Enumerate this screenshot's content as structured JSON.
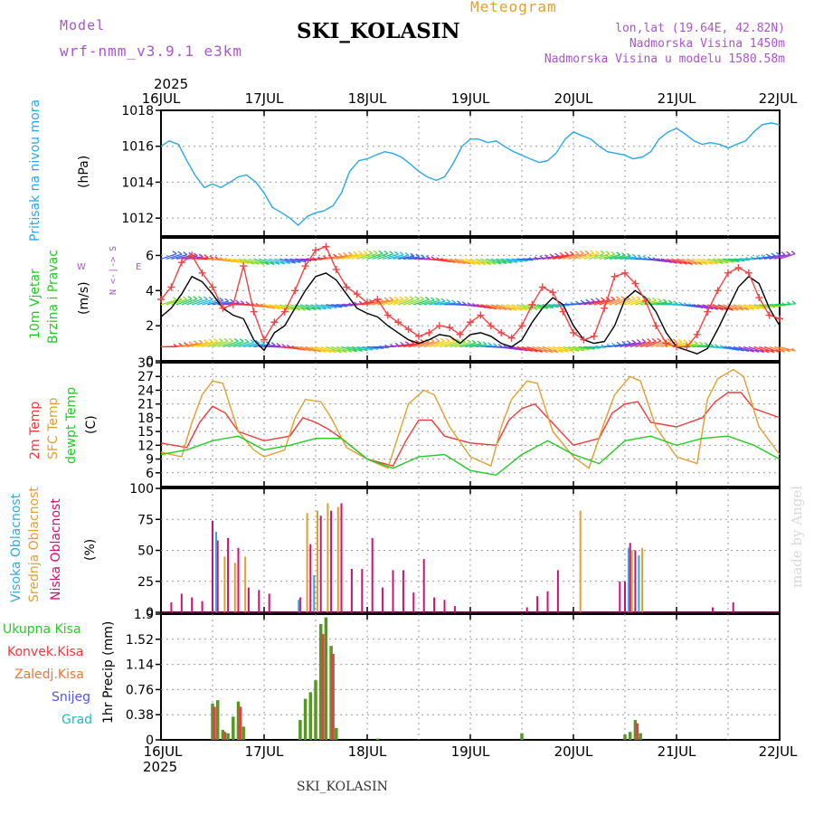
{
  "header": {
    "model_label": "Model",
    "model_name": "wrf-nmm_v3.9.1 e3km",
    "title": "SKI_KOLASIN",
    "meteogram_label": "Meteogram",
    "coords": "lon,lat (19.64E, 42.82N)",
    "elevation": "Nadmorska Visina 1450m",
    "model_elevation": "Nadmorska Visina u modelu 1580.58m",
    "footer_title": "SKI_KOLASIN",
    "watermark": "made by Angel"
  },
  "time_axis": {
    "year": "2025",
    "labels": [
      "16JUL",
      "17JUL",
      "18JUL",
      "19JUL",
      "20JUL",
      "21JUL",
      "22JUL"
    ]
  },
  "panel_labels": {
    "pressure": {
      "title": "Pritisak na nivou mora",
      "unit": "(hPa)"
    },
    "wind": {
      "title1": "10m Vjetar",
      "title2": "Brzina i Pravac",
      "unit": "(m/s)",
      "compass_ns": "N <-|-> S",
      "compass_w": "W",
      "compass_e": "E"
    },
    "temp": {
      "t2m": "2m Temp",
      "sfc": "SFC Temp",
      "dew": "dewpt Temp",
      "unit": "(C)"
    },
    "cloud": {
      "high": "Visoka Oblacnost",
      "mid": "Srednja Oblacnost",
      "low": "Niska Oblacnost",
      "unit": "(%)"
    },
    "precip": {
      "total": "Ukupna Kisa",
      "conv": "Konvek.Kisa",
      "frz": "Zaledj.Kisa",
      "snow": "Snijeg",
      "hail": "Grad",
      "unit": "1hr Precip (mm)"
    }
  },
  "colors": {
    "pressure": "#2aa7e6",
    "temp2m": "#ee3a3a",
    "sfc": "#e0a030",
    "dew": "#22cc22",
    "wind_black": "#000000",
    "wind_red": "#ee4444",
    "high_cloud": "#33aadd",
    "mid_cloud": "#e0a030",
    "low_cloud": "#cc1177",
    "precip_total": "#559922",
    "precip_conv": "#dd4444",
    "model_purple": "#aa55cc",
    "orange_title": "#e0a030"
  },
  "chart_data": [
    {
      "type": "line",
      "title": "Pritisak na nivou mora",
      "ylabel": "(hPa)",
      "x_unit": "days since 16JUL 00UTC",
      "ylim": [
        1011,
        1018
      ],
      "yticks": [
        "1012",
        "1014",
        "1016",
        "1018"
      ],
      "series": [
        {
          "name": "Pritisak",
          "x": [
            0,
            0.08,
            0.17,
            0.25,
            0.33,
            0.42,
            0.5,
            0.58,
            0.67,
            0.75,
            0.83,
            0.92,
            1.0,
            1.08,
            1.17,
            1.25,
            1.33,
            1.42,
            1.5,
            1.58,
            1.67,
            1.75,
            1.83,
            1.92,
            2.0,
            2.08,
            2.17,
            2.25,
            2.33,
            2.42,
            2.5,
            2.58,
            2.67,
            2.75,
            2.83,
            2.92,
            3.0,
            3.08,
            3.17,
            3.25,
            3.33,
            3.42,
            3.5,
            3.58,
            3.67,
            3.75,
            3.83,
            3.92,
            4.0,
            4.08,
            4.17,
            4.25,
            4.33,
            4.42,
            4.5,
            4.58,
            4.67,
            4.75,
            4.83,
            4.92,
            5.0,
            5.08,
            5.17,
            5.25,
            5.33,
            5.42,
            5.5,
            5.58,
            5.67,
            5.75,
            5.83,
            5.92,
            6.0
          ],
          "values": [
            1016.0,
            1016.3,
            1016.1,
            1015.2,
            1014.4,
            1013.7,
            1013.9,
            1013.7,
            1014.0,
            1014.3,
            1014.4,
            1014.0,
            1013.4,
            1012.6,
            1012.3,
            1012.0,
            1011.6,
            1012.1,
            1012.3,
            1012.4,
            1012.7,
            1013.4,
            1014.6,
            1015.2,
            1015.3,
            1015.5,
            1015.7,
            1015.6,
            1015.4,
            1015.0,
            1014.6,
            1014.3,
            1014.1,
            1014.3,
            1015.0,
            1016.0,
            1016.4,
            1016.4,
            1016.2,
            1016.3,
            1016.0,
            1015.7,
            1015.5,
            1015.3,
            1015.1,
            1015.2,
            1015.6,
            1016.4,
            1016.8,
            1016.6,
            1016.4,
            1016.0,
            1015.7,
            1015.6,
            1015.5,
            1015.3,
            1015.4,
            1015.7,
            1016.4,
            1016.8,
            1017.0,
            1016.7,
            1016.3,
            1016.1,
            1016.2,
            1016.1,
            1015.9,
            1016.1,
            1016.3,
            1016.8,
            1017.2,
            1017.3,
            1017.2
          ]
        }
      ]
    },
    {
      "type": "line",
      "title": "10m Vjetar Brzina i Pravac",
      "ylabel": "(m/s)",
      "ylim": [
        0,
        7
      ],
      "yticks": [
        "0",
        "2",
        "4",
        "6"
      ],
      "series": [
        {
          "name": "brzina",
          "x": [
            0,
            0.1,
            0.2,
            0.3,
            0.4,
            0.5,
            0.6,
            0.7,
            0.8,
            0.9,
            1.0,
            1.1,
            1.2,
            1.3,
            1.4,
            1.5,
            1.6,
            1.7,
            1.8,
            1.9,
            2.0,
            2.1,
            2.2,
            2.3,
            2.4,
            2.5,
            2.6,
            2.7,
            2.8,
            2.9,
            3.0,
            3.1,
            3.2,
            3.3,
            3.4,
            3.5,
            3.6,
            3.7,
            3.8,
            3.9,
            4.0,
            4.1,
            4.2,
            4.3,
            4.4,
            4.5,
            4.6,
            4.7,
            4.8,
            4.9,
            5.0,
            5.1,
            5.2,
            5.3,
            5.4,
            5.5,
            5.6,
            5.7,
            5.8,
            5.9,
            6.0
          ],
          "values": [
            2.5,
            3.0,
            3.8,
            4.8,
            4.5,
            3.8,
            3.0,
            2.6,
            2.4,
            1.2,
            0.6,
            1.6,
            2.0,
            3.0,
            4.0,
            4.8,
            5.0,
            4.6,
            3.8,
            3.0,
            2.7,
            2.5,
            2.0,
            1.6,
            1.2,
            1.0,
            1.2,
            1.5,
            1.4,
            1.0,
            1.5,
            1.6,
            1.4,
            1.0,
            0.8,
            1.2,
            2.2,
            3.0,
            3.6,
            3.2,
            2.0,
            1.2,
            1.0,
            1.1,
            2.0,
            3.5,
            4.0,
            3.6,
            2.8,
            1.6,
            0.8,
            0.6,
            0.4,
            0.7,
            1.8,
            3.0,
            4.2,
            4.8,
            4.4,
            3.0,
            2.0
          ]
        },
        {
          "name": "udari",
          "x": [
            0,
            0.1,
            0.2,
            0.3,
            0.4,
            0.5,
            0.6,
            0.7,
            0.8,
            0.9,
            1.0,
            1.1,
            1.2,
            1.3,
            1.4,
            1.5,
            1.6,
            1.7,
            1.8,
            1.9,
            2.0,
            2.1,
            2.2,
            2.3,
            2.4,
            2.5,
            2.6,
            2.7,
            2.8,
            2.9,
            3.0,
            3.1,
            3.2,
            3.3,
            3.4,
            3.5,
            3.6,
            3.7,
            3.8,
            3.9,
            4.0,
            4.1,
            4.2,
            4.3,
            4.4,
            4.5,
            4.6,
            4.7,
            4.8,
            4.9,
            5.0,
            5.1,
            5.2,
            5.3,
            5.4,
            5.5,
            5.6,
            5.7,
            5.8,
            5.9,
            6.0
          ],
          "values": [
            3.5,
            4.2,
            5.6,
            6.0,
            5.0,
            4.2,
            3.0,
            3.2,
            5.4,
            2.8,
            1.2,
            2.2,
            2.8,
            4.0,
            5.4,
            6.3,
            6.5,
            5.2,
            4.2,
            3.8,
            3.3,
            3.5,
            2.6,
            2.2,
            1.8,
            1.4,
            1.6,
            2.0,
            1.9,
            1.5,
            2.2,
            2.6,
            2.0,
            1.6,
            1.3,
            2.0,
            3.2,
            4.2,
            3.9,
            2.8,
            1.6,
            1.2,
            1.4,
            3.0,
            4.8,
            5.0,
            4.4,
            3.4,
            2.0,
            1.0,
            0.8,
            0.8,
            1.5,
            2.8,
            4.0,
            5.0,
            5.3,
            5.0,
            3.6,
            2.6,
            2.4
          ]
        }
      ],
      "arrow_rows": [
        0.8,
        3.2,
        5.8
      ]
    },
    {
      "type": "line",
      "title": "2m Temp / SFC Temp / dewpt Temp",
      "ylabel": "(C)",
      "ylim": [
        3,
        30
      ],
      "yticks": [
        "6",
        "9",
        "12",
        "15",
        "18",
        "21",
        "24",
        "27",
        "30"
      ],
      "series": [
        {
          "name": "2m Temp",
          "x": [
            0,
            0.25,
            0.375,
            0.5,
            0.625,
            0.75,
            1.0,
            1.25,
            1.375,
            1.5,
            1.625,
            1.75,
            2.0,
            2.25,
            2.375,
            2.5,
            2.625,
            2.75,
            3.0,
            3.25,
            3.375,
            3.5,
            3.625,
            3.75,
            4.0,
            4.25,
            4.375,
            4.5,
            4.625,
            4.75,
            5.0,
            5.25,
            5.375,
            5.5,
            5.625,
            5.75,
            6.0
          ],
          "values": [
            12.5,
            11.5,
            17.0,
            20.5,
            19.0,
            15.0,
            13.0,
            14.0,
            18.0,
            17.0,
            15.5,
            13.5,
            9.0,
            7.5,
            13.0,
            17.5,
            17.5,
            14.0,
            12.5,
            12.0,
            17.5,
            20.0,
            21.0,
            18.0,
            12.0,
            13.5,
            19.0,
            21.0,
            21.5,
            17.0,
            16.0,
            18.0,
            21.5,
            23.5,
            23.5,
            20.0,
            18.0
          ]
        },
        {
          "name": "SFC Temp",
          "x": [
            0,
            0.2,
            0.3,
            0.4,
            0.5,
            0.6,
            0.75,
            0.9,
            1.0,
            1.2,
            1.3,
            1.4,
            1.55,
            1.65,
            1.8,
            2.0,
            2.2,
            2.3,
            2.4,
            2.55,
            2.65,
            2.8,
            3.0,
            3.2,
            3.3,
            3.4,
            3.55,
            3.65,
            3.8,
            4.0,
            4.15,
            4.3,
            4.4,
            4.55,
            4.65,
            4.8,
            5.0,
            5.2,
            5.3,
            5.4,
            5.55,
            5.65,
            5.8,
            6.0
          ],
          "values": [
            10.5,
            9.5,
            17.0,
            23.0,
            26.0,
            25.5,
            15.0,
            11.0,
            9.5,
            11.0,
            18.0,
            22.0,
            21.5,
            18.0,
            11.5,
            9.0,
            7.0,
            14.0,
            21.0,
            24.0,
            23.0,
            16.0,
            9.5,
            7.5,
            16.0,
            22.0,
            26.0,
            25.5,
            15.0,
            9.5,
            7.0,
            17.0,
            23.0,
            27.0,
            26.0,
            16.0,
            9.5,
            8.0,
            22.0,
            26.5,
            28.5,
            27.0,
            16.0,
            10.0
          ]
        },
        {
          "name": "dewpt Temp",
          "x": [
            0,
            0.25,
            0.5,
            0.75,
            1.0,
            1.25,
            1.5,
            1.75,
            2.0,
            2.25,
            2.5,
            2.75,
            3.0,
            3.25,
            3.5,
            3.75,
            4.0,
            4.25,
            4.5,
            4.75,
            5.0,
            5.25,
            5.5,
            5.75,
            6.0
          ],
          "values": [
            10.0,
            11.0,
            13.0,
            14.0,
            11.0,
            12.0,
            13.5,
            13.5,
            9.0,
            7.0,
            9.5,
            10.0,
            6.5,
            5.5,
            10.0,
            13.0,
            10.0,
            8.0,
            13.0,
            14.0,
            12.0,
            13.5,
            14.0,
            12.0,
            9.0
          ]
        }
      ]
    },
    {
      "type": "bar",
      "title": "Visoka / Srednja / Niska Oblacnost",
      "ylabel": "(%)",
      "ylim": [
        0,
        100
      ],
      "yticks": [
        "0",
        "25",
        "50",
        "75",
        "100"
      ],
      "series": [
        {
          "name": "Niska Oblacnost",
          "x": [
            0.1,
            0.2,
            0.3,
            0.4,
            0.5,
            0.55,
            0.65,
            0.75,
            0.85,
            0.95,
            1.05,
            1.35,
            1.45,
            1.55,
            1.65,
            1.75,
            1.85,
            1.95,
            2.05,
            2.15,
            2.25,
            2.35,
            2.45,
            2.55,
            2.65,
            2.75,
            2.85,
            3.55,
            3.65,
            3.75,
            3.85,
            4.45,
            4.5,
            4.55,
            4.6,
            5.35,
            5.55
          ],
          "values": [
            8,
            15,
            12,
            9,
            74,
            58,
            60,
            52,
            20,
            18,
            15,
            12,
            55,
            78,
            82,
            88,
            35,
            35,
            60,
            20,
            34,
            34,
            16,
            43,
            12,
            10,
            5,
            4,
            13,
            17,
            34,
            25,
            25,
            56,
            50,
            4,
            8
          ]
        },
        {
          "name": "Srednja Oblacnost",
          "x": [
            0.6,
            0.7,
            0.8,
            1.4,
            1.5,
            1.6,
            1.7,
            4.05,
            4.55,
            4.65
          ],
          "values": [
            45,
            40,
            45,
            80,
            82,
            88,
            85,
            82,
            50,
            52
          ]
        },
        {
          "name": "Visoka Oblacnost",
          "x": [
            0.5,
            1.3,
            1.45,
            4.5,
            4.6
          ],
          "values": [
            65,
            10,
            30,
            52,
            46
          ]
        }
      ]
    },
    {
      "type": "bar",
      "title": "1hr Precip",
      "ylabel": "1hr Precip (mm)",
      "ylim": [
        0,
        1.9
      ],
      "yticks": [
        "0",
        "0.38",
        "0.76",
        "1.14",
        "1.52",
        "1.9"
      ],
      "series": [
        {
          "name": "Ukupna Kisa",
          "x": [
            0.5,
            0.55,
            0.6,
            0.65,
            0.7,
            0.75,
            0.8,
            1.35,
            1.4,
            1.45,
            1.5,
            1.55,
            1.6,
            1.65,
            1.7,
            2.1,
            3.5,
            4.5,
            4.55,
            4.6,
            4.65
          ],
          "values": [
            0.55,
            0.6,
            0.15,
            0.1,
            0.35,
            0.58,
            0.2,
            0.3,
            0.62,
            0.72,
            0.9,
            1.75,
            1.85,
            1.42,
            0.18,
            0.02,
            0.1,
            0.08,
            0.12,
            0.3,
            0.1
          ]
        },
        {
          "name": "Konvek.Kisa",
          "x": [
            0.5,
            0.6,
            0.75,
            1.55,
            1.65,
            4.6
          ],
          "values": [
            0.5,
            0.12,
            0.5,
            1.6,
            1.3,
            0.25
          ]
        }
      ]
    }
  ]
}
